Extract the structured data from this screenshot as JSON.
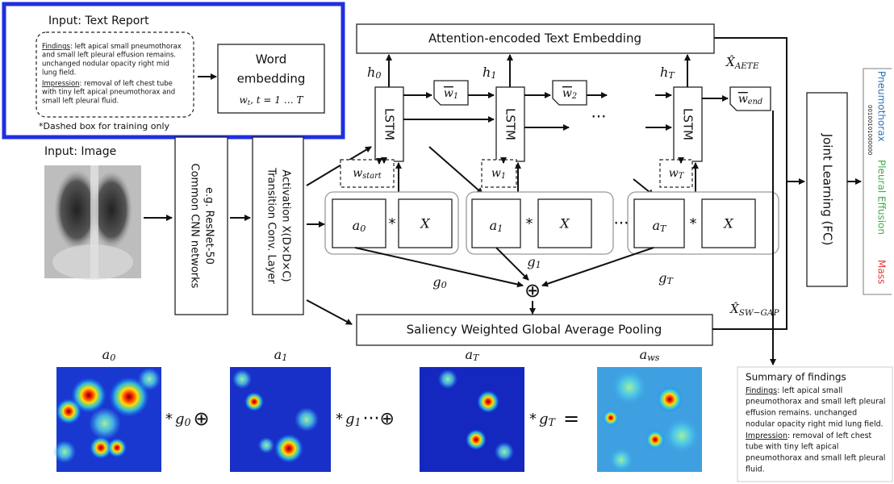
{
  "text_report": {
    "title": "Input: Text Report",
    "lines": [
      {
        "u": "Findings",
        "t": ": left apical small pneumothorax"
      },
      {
        "t": "and small left pleural effusion remains."
      },
      {
        "t": "unchanged nodular opacity right mid"
      },
      {
        "t": "lung field."
      },
      {
        "u": "Impression",
        "t": ": removal of left chest tube"
      },
      {
        "t": "with tiny left apical  pneumothorax and"
      },
      {
        "t": "small left pleural fluid."
      }
    ],
    "note": "*Dashed box for training only"
  },
  "word_embedding": {
    "lines": [
      "Word",
      "embedding"
    ],
    "formula": {
      "b": "w",
      "s": "t",
      "t": ", t = 1 … T"
    }
  },
  "image_input": {
    "title": "Input: Image"
  },
  "cnn": {
    "lines": [
      "Common CNN networks",
      "e.g. ResNet-50"
    ]
  },
  "transition": {
    "lines": [
      "Transition Conv. Layer",
      "Activation X(D×D×C)"
    ]
  },
  "aete": {
    "label": "Attention-encoded Text Embedding"
  },
  "lstm": [
    {
      "label": "LSTM",
      "h": {
        "b": "h",
        "s": "0"
      },
      "w_out": {
        "b": "w",
        "s": "1"
      },
      "w_in": {
        "b": "w",
        "s": "start"
      },
      "a": {
        "b": "a",
        "s": "0"
      },
      "op": "*",
      "x": "X",
      "g": {
        "b": "g",
        "s": "0"
      }
    },
    {
      "label": "LSTM",
      "h": {
        "b": "h",
        "s": "1"
      },
      "w_out": {
        "b": "w",
        "s": "2"
      },
      "w_in": {
        "b": "w",
        "s": "1"
      },
      "a": {
        "b": "a",
        "s": "1"
      },
      "op": "*",
      "x": "X",
      "g": {
        "b": "g",
        "s": "1"
      }
    },
    {
      "label": "LSTM",
      "h": {
        "b": "h",
        "s": "T"
      },
      "w_out": {
        "b": "w",
        "s": "end"
      },
      "w_in": {
        "b": "w",
        "s": "T"
      },
      "a": {
        "b": "a",
        "s": "T"
      },
      "op": "*",
      "x": "X",
      "g": {
        "b": "g",
        "s": "T"
      }
    }
  ],
  "ellipsis": "···",
  "oplus": "⊕",
  "swgap": {
    "label": "Saliency Weighted Global Average Pooling"
  },
  "x_aete": {
    "b": "X̂",
    "s": "AETE"
  },
  "x_swgap": {
    "b": "X̂",
    "s": "SW−GAP"
  },
  "joint": {
    "label": "Joint Learning (FC)"
  },
  "outputs": {
    "labels": [
      {
        "text": "Pneumothorax",
        "color": "#2e75b6"
      },
      {
        "text": "Pleural Effusion",
        "color": "#3fae49"
      },
      {
        "text": "Mass",
        "color": "#e03c31"
      }
    ],
    "code": "00100101000000"
  },
  "saliency_maps": {
    "maps": [
      {
        "b": "a",
        "s": "0"
      },
      {
        "b": "a",
        "s": "1"
      },
      {
        "b": "a",
        "s": "T"
      },
      {
        "b": "a",
        "s": "ws"
      }
    ],
    "ops": [
      {
        "star": "*",
        "g": {
          "b": "g",
          "s": "0"
        },
        "tail": "⊕"
      },
      {
        "star": "*",
        "g": {
          "b": "g",
          "s": "1"
        },
        "tail": "···⊕"
      },
      {
        "star": "*",
        "g": {
          "b": "g",
          "s": "T"
        },
        "tail": "="
      }
    ]
  },
  "summary": {
    "title": "Summary of findings",
    "lines": [
      {
        "u": "Findings",
        "t": ": left apical small"
      },
      {
        "t": "pneumothorax and small left pleural"
      },
      {
        "t": "effusion remains. unchanged"
      },
      {
        "t": "nodular opacity right mid lung field."
      },
      {
        "u": "Impression",
        "t": ": removal of left chest"
      },
      {
        "t": "tube with tiny left apical"
      },
      {
        "t": "pneumothorax and small left pleural"
      },
      {
        "t": "fluid."
      }
    ]
  }
}
